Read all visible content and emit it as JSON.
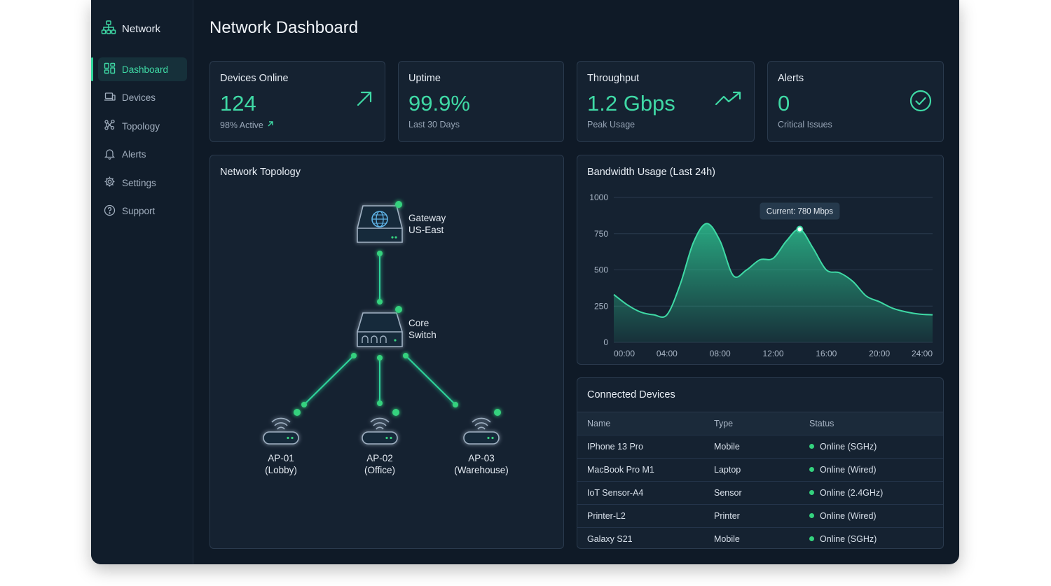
{
  "app": {
    "brand": "Network",
    "page_title": "Network Dashboard"
  },
  "sidebar": {
    "items": [
      {
        "label": "Dashboard",
        "icon": "dashboard-icon",
        "active": true
      },
      {
        "label": "Devices",
        "icon": "devices-icon"
      },
      {
        "label": "Topology",
        "icon": "topology-icon"
      },
      {
        "label": "Alerts",
        "icon": "bell-icon"
      },
      {
        "label": "Settings",
        "icon": "gear-icon"
      },
      {
        "label": "Support",
        "icon": "help-icon"
      }
    ]
  },
  "stats": [
    {
      "title": "Devices Online",
      "value": "124",
      "sub": "98% Active",
      "icon": "arrow-up-right-icon"
    },
    {
      "title": "Uptime",
      "value": "99.9%",
      "sub": "Last 30 Days"
    },
    {
      "title": "Throughput",
      "value": "1.2 Gbps",
      "sub": "Peak Usage",
      "icon": "trending-up-icon"
    },
    {
      "title": "Alerts",
      "value": "0",
      "sub": "Critical Issues",
      "icon": "check-circle-icon"
    }
  ],
  "topology": {
    "title": "Network Topology",
    "gateway": {
      "line1": "Gateway",
      "line2": "US-East"
    },
    "core": {
      "line1": "Core",
      "line2": "Switch"
    },
    "aps": [
      {
        "line1": "AP-01",
        "line2": "(Lobby)"
      },
      {
        "line1": "AP-02",
        "line2": "(Office)"
      },
      {
        "line1": "AP-03",
        "line2": "(Warehouse)"
      }
    ]
  },
  "bandwidth": {
    "title": "Bandwidth Usage (Last 24h)",
    "tooltip": "Current: 780 Mbps"
  },
  "chart_data": {
    "type": "area",
    "title": "Bandwidth Usage (Last 24h)",
    "x_ticks": [
      "00:00",
      "04:00",
      "08:00",
      "12:00",
      "16:00",
      "20:00",
      "24:00"
    ],
    "y_ticks": [
      0,
      250,
      500,
      750,
      1000
    ],
    "ylim": [
      0,
      1000
    ],
    "x_hours": [
      0,
      1,
      2,
      3,
      4,
      5,
      6,
      7,
      8,
      9,
      10,
      11,
      12,
      13,
      14,
      15,
      16,
      17,
      18,
      19,
      20,
      21,
      22,
      23,
      24
    ],
    "values": [
      330,
      260,
      210,
      190,
      190,
      400,
      690,
      820,
      700,
      460,
      500,
      570,
      580,
      700,
      780,
      650,
      500,
      480,
      420,
      320,
      280,
      235,
      210,
      195,
      190
    ],
    "grid": true,
    "color": "#2fd49b",
    "series": [
      {
        "values_ref": "values"
      }
    ]
  },
  "devices": {
    "title": "Connected Devices",
    "columns": [
      "Name",
      "Type",
      "Status"
    ],
    "rows": [
      {
        "name": "IPhone 13 Pro",
        "type": "Mobile",
        "status": "Online (SGHz)"
      },
      {
        "name": "MacBook Pro M1",
        "type": "Laptop",
        "status": "Online (Wired)"
      },
      {
        "name": "IoT Sensor-A4",
        "type": "Sensor",
        "status": "Online (2.4GHz)"
      },
      {
        "name": "Printer-L2",
        "type": "Printer",
        "status": "Online (Wired)"
      },
      {
        "name": "Galaxy S21",
        "type": "Mobile",
        "status": "Online (SGHz)"
      }
    ]
  },
  "colors": {
    "accent": "#3fd9a5",
    "background": "#0f1a27",
    "card": "#152231",
    "status_online": "#34d27e"
  }
}
